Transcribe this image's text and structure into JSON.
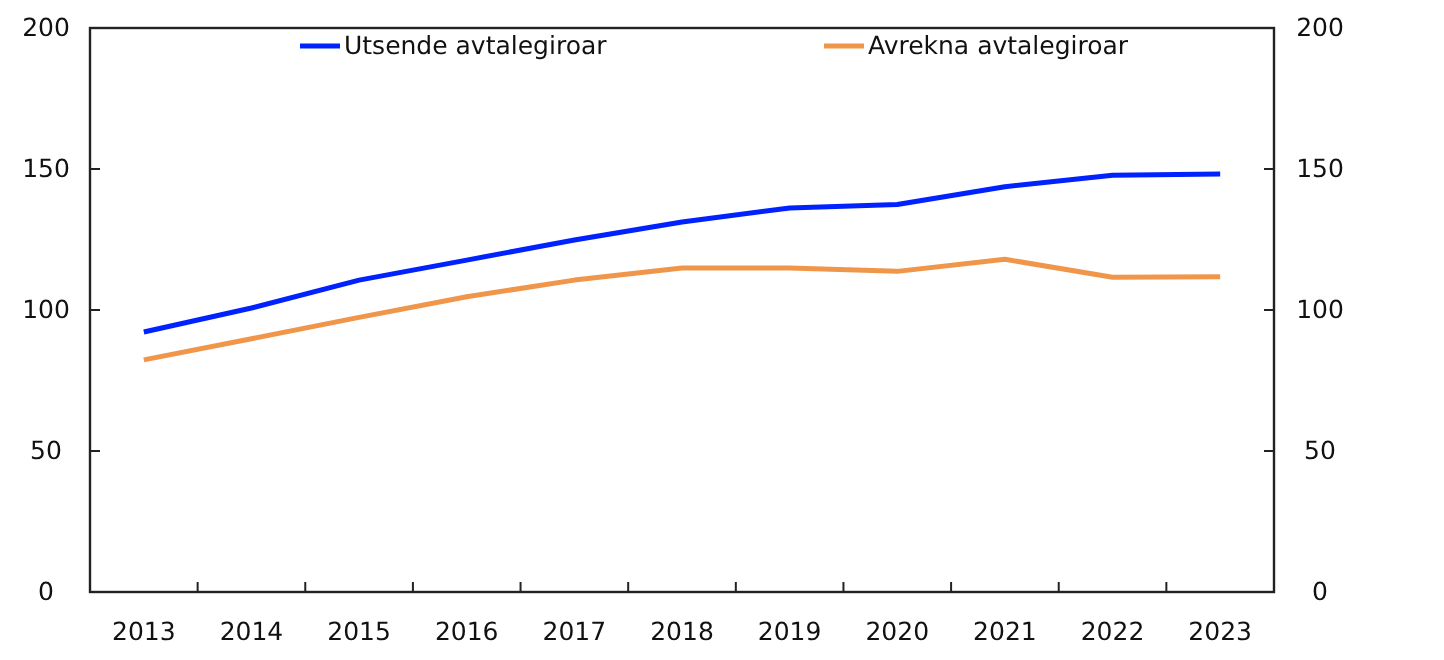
{
  "chart_data": {
    "type": "line",
    "categories": [
      "2013",
      "2014",
      "2015",
      "2016",
      "2017",
      "2018",
      "2019",
      "2020",
      "2021",
      "2022",
      "2023"
    ],
    "series": [
      {
        "name": "Utsende avtalegiroar",
        "color": "#0022ff",
        "values": [
          92.2,
          100.7,
          110.6,
          117.7,
          124.8,
          131.2,
          136.2,
          137.4,
          143.7,
          147.8,
          148.2
        ]
      },
      {
        "name": "Avrekna avtalegiroar",
        "color": "#f0964a",
        "values": [
          82.3,
          89.8,
          97.4,
          104.7,
          110.6,
          114.9,
          114.9,
          113.7,
          118,
          111.6,
          111.8
        ]
      }
    ],
    "ylim": [
      0,
      200
    ],
    "yticks": [
      0,
      50,
      100,
      150,
      200
    ],
    "y2lim": [
      0,
      200
    ],
    "y2ticks": [
      0,
      50,
      100,
      150,
      200
    ],
    "grid": false,
    "legend": "top",
    "marker": "none",
    "line_style": "solid"
  }
}
